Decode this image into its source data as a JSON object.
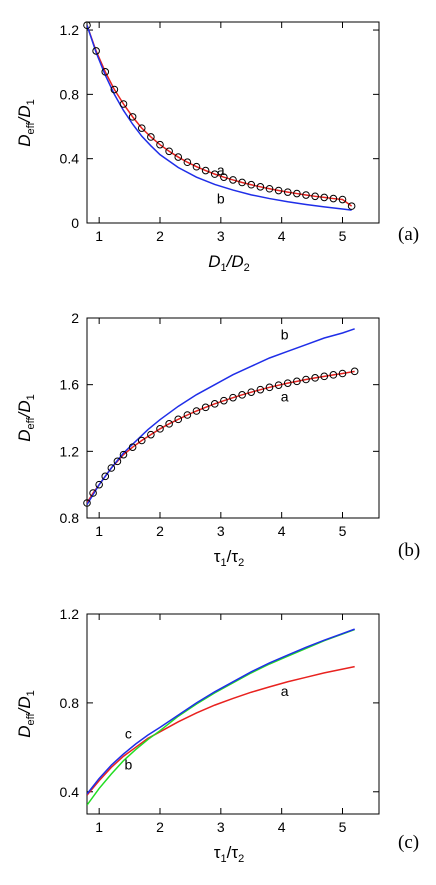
{
  "chart_data": [
    {
      "panel": "(a)",
      "type": "line",
      "xlim": [
        0.8,
        5.6
      ],
      "ylim": [
        0,
        1.25
      ],
      "xticks": [
        1,
        2,
        3,
        4,
        5
      ],
      "xtick_labels": [
        "1",
        "2",
        "3",
        "4",
        "5"
      ],
      "yticks": [
        0,
        0.4,
        0.8,
        1.2
      ],
      "ytick_labels": [
        "0",
        "0.4",
        "0.8",
        "1.2"
      ],
      "xlabel": {
        "main": "D",
        "sub1": "1",
        "sep": "/D",
        "sub2": "2"
      },
      "ylabel": {
        "main": "D",
        "sub1": "eff",
        "sep": "/D",
        "sub2": "1"
      },
      "series": [
        {
          "name": "a",
          "color": "#e8221f",
          "markers": true,
          "x": [
            0.8,
            0.95,
            1.1,
            1.25,
            1.4,
            1.55,
            1.7,
            1.85,
            2.0,
            2.15,
            2.3,
            2.45,
            2.6,
            2.75,
            2.9,
            3.05,
            3.2,
            3.35,
            3.5,
            3.65,
            3.8,
            3.95,
            4.1,
            4.25,
            4.4,
            4.55,
            4.7,
            4.85,
            5.0,
            5.15
          ],
          "y": [
            1.23,
            1.07,
            0.94,
            0.83,
            0.74,
            0.66,
            0.59,
            0.535,
            0.487,
            0.446,
            0.41,
            0.378,
            0.35,
            0.326,
            0.304,
            0.285,
            0.268,
            0.252,
            0.238,
            0.225,
            0.213,
            0.202,
            0.192,
            0.183,
            0.174,
            0.166,
            0.159,
            0.152,
            0.146,
            0.105
          ]
        },
        {
          "name": "b",
          "color": "#1f2ee8",
          "markers": false,
          "x": [
            0.8,
            0.95,
            1.1,
            1.25,
            1.4,
            1.55,
            1.7,
            1.85,
            2.0,
            2.3,
            2.6,
            2.9,
            3.2,
            3.5,
            3.8,
            4.1,
            4.4,
            4.7,
            5.0,
            5.15
          ],
          "y": [
            1.23,
            1.06,
            0.92,
            0.8,
            0.7,
            0.615,
            0.54,
            0.48,
            0.425,
            0.345,
            0.285,
            0.24,
            0.205,
            0.175,
            0.152,
            0.132,
            0.115,
            0.1,
            0.087,
            0.08
          ]
        }
      ],
      "annotations": [
        {
          "text": "a",
          "x": 3.0,
          "y": 0.3
        },
        {
          "text": "b",
          "x": 3.0,
          "y": 0.12
        }
      ]
    },
    {
      "panel": "(b)",
      "type": "line",
      "xlim": [
        0.8,
        5.6
      ],
      "ylim": [
        0.8,
        2.0
      ],
      "xticks": [
        1,
        2,
        3,
        4,
        5
      ],
      "xtick_labels": [
        "1",
        "2",
        "3",
        "4",
        "5"
      ],
      "yticks": [
        0.8,
        1.2,
        1.6,
        2.0
      ],
      "ytick_labels": [
        "0.8",
        "1.2",
        "1.6",
        "2"
      ],
      "xlabel": {
        "main": "τ",
        "sub1": "1",
        "sep": "/τ",
        "sub2": "2"
      },
      "ylabel": {
        "main": "D",
        "sub1": "eff",
        "sep": "/D",
        "sub2": "1"
      },
      "series": [
        {
          "name": "a",
          "color": "#e8221f",
          "markers": true,
          "x": [
            0.8,
            0.9,
            1.0,
            1.1,
            1.2,
            1.3,
            1.4,
            1.55,
            1.7,
            1.85,
            2.0,
            2.15,
            2.3,
            2.45,
            2.6,
            2.75,
            2.9,
            3.05,
            3.2,
            3.35,
            3.5,
            3.65,
            3.8,
            3.95,
            4.1,
            4.25,
            4.4,
            4.55,
            4.7,
            4.85,
            5.0,
            5.2
          ],
          "y": [
            0.89,
            0.95,
            1.0,
            1.05,
            1.1,
            1.14,
            1.18,
            1.225,
            1.265,
            1.3,
            1.335,
            1.365,
            1.392,
            1.418,
            1.442,
            1.464,
            1.485,
            1.504,
            1.522,
            1.539,
            1.555,
            1.57,
            1.584,
            1.597,
            1.609,
            1.62,
            1.631,
            1.641,
            1.65,
            1.659,
            1.667,
            1.68
          ]
        },
        {
          "name": "b",
          "color": "#1f2ee8",
          "markers": false,
          "x": [
            0.8,
            1.0,
            1.2,
            1.4,
            1.6,
            1.8,
            2.0,
            2.3,
            2.6,
            2.9,
            3.2,
            3.5,
            3.8,
            4.1,
            4.4,
            4.7,
            5.0,
            5.2
          ],
          "y": [
            0.88,
            1.0,
            1.1,
            1.19,
            1.26,
            1.33,
            1.39,
            1.47,
            1.54,
            1.6,
            1.66,
            1.71,
            1.76,
            1.8,
            1.84,
            1.88,
            1.91,
            1.935
          ]
        }
      ],
      "annotations": [
        {
          "text": "b",
          "x": 4.05,
          "y": 1.87
        },
        {
          "text": "a",
          "x": 4.05,
          "y": 1.5
        }
      ]
    },
    {
      "panel": "(c)",
      "type": "line",
      "xlim": [
        0.8,
        5.6
      ],
      "ylim": [
        0.3,
        1.2
      ],
      "xticks": [
        1,
        2,
        3,
        4,
        5
      ],
      "xtick_labels": [
        "1",
        "2",
        "3",
        "4",
        "5"
      ],
      "yticks": [
        0.4,
        0.8,
        1.2
      ],
      "ytick_labels": [
        "0.4",
        "0.8",
        "1.2"
      ],
      "xlabel": {
        "main": "τ",
        "sub1": "1",
        "sep": "/τ",
        "sub2": "2"
      },
      "ylabel": {
        "main": "D",
        "sub1": "eff",
        "sep": "/D",
        "sub2": "1"
      },
      "series": [
        {
          "name": "a",
          "color": "#e8221f",
          "markers": false,
          "x": [
            0.8,
            1.0,
            1.2,
            1.4,
            1.6,
            1.8,
            2.0,
            2.3,
            2.6,
            2.9,
            3.2,
            3.5,
            3.8,
            4.1,
            4.4,
            4.7,
            5.0,
            5.2
          ],
          "y": [
            0.385,
            0.45,
            0.51,
            0.56,
            0.6,
            0.64,
            0.67,
            0.715,
            0.755,
            0.79,
            0.82,
            0.848,
            0.872,
            0.895,
            0.915,
            0.935,
            0.952,
            0.963
          ]
        },
        {
          "name": "b",
          "color": "#22dd22",
          "markers": false,
          "x": [
            0.8,
            1.0,
            1.2,
            1.4,
            1.6,
            1.8,
            2.0,
            2.3,
            2.6,
            2.9,
            3.2,
            3.5,
            3.8,
            4.1,
            4.4,
            4.7,
            5.0,
            5.2
          ],
          "y": [
            0.34,
            0.415,
            0.48,
            0.54,
            0.59,
            0.635,
            0.675,
            0.74,
            0.795,
            0.845,
            0.89,
            0.935,
            0.975,
            1.01,
            1.045,
            1.08,
            1.11,
            1.13
          ]
        },
        {
          "name": "c",
          "color": "#1f2ee8",
          "markers": false,
          "x": [
            0.8,
            1.0,
            1.2,
            1.4,
            1.6,
            1.8,
            2.0,
            2.3,
            2.6,
            2.9,
            3.2,
            3.5,
            3.8,
            4.1,
            4.4,
            4.7,
            5.0,
            5.2
          ],
          "y": [
            0.39,
            0.46,
            0.52,
            0.57,
            0.615,
            0.655,
            0.69,
            0.745,
            0.8,
            0.85,
            0.895,
            0.94,
            0.98,
            1.015,
            1.05,
            1.082,
            1.112,
            1.132
          ]
        }
      ],
      "annotations": [
        {
          "text": "a",
          "x": 4.05,
          "y": 0.83
        },
        {
          "text": "c",
          "x": 1.48,
          "y": 0.64
        },
        {
          "text": "b",
          "x": 1.48,
          "y": 0.5
        }
      ]
    }
  ]
}
